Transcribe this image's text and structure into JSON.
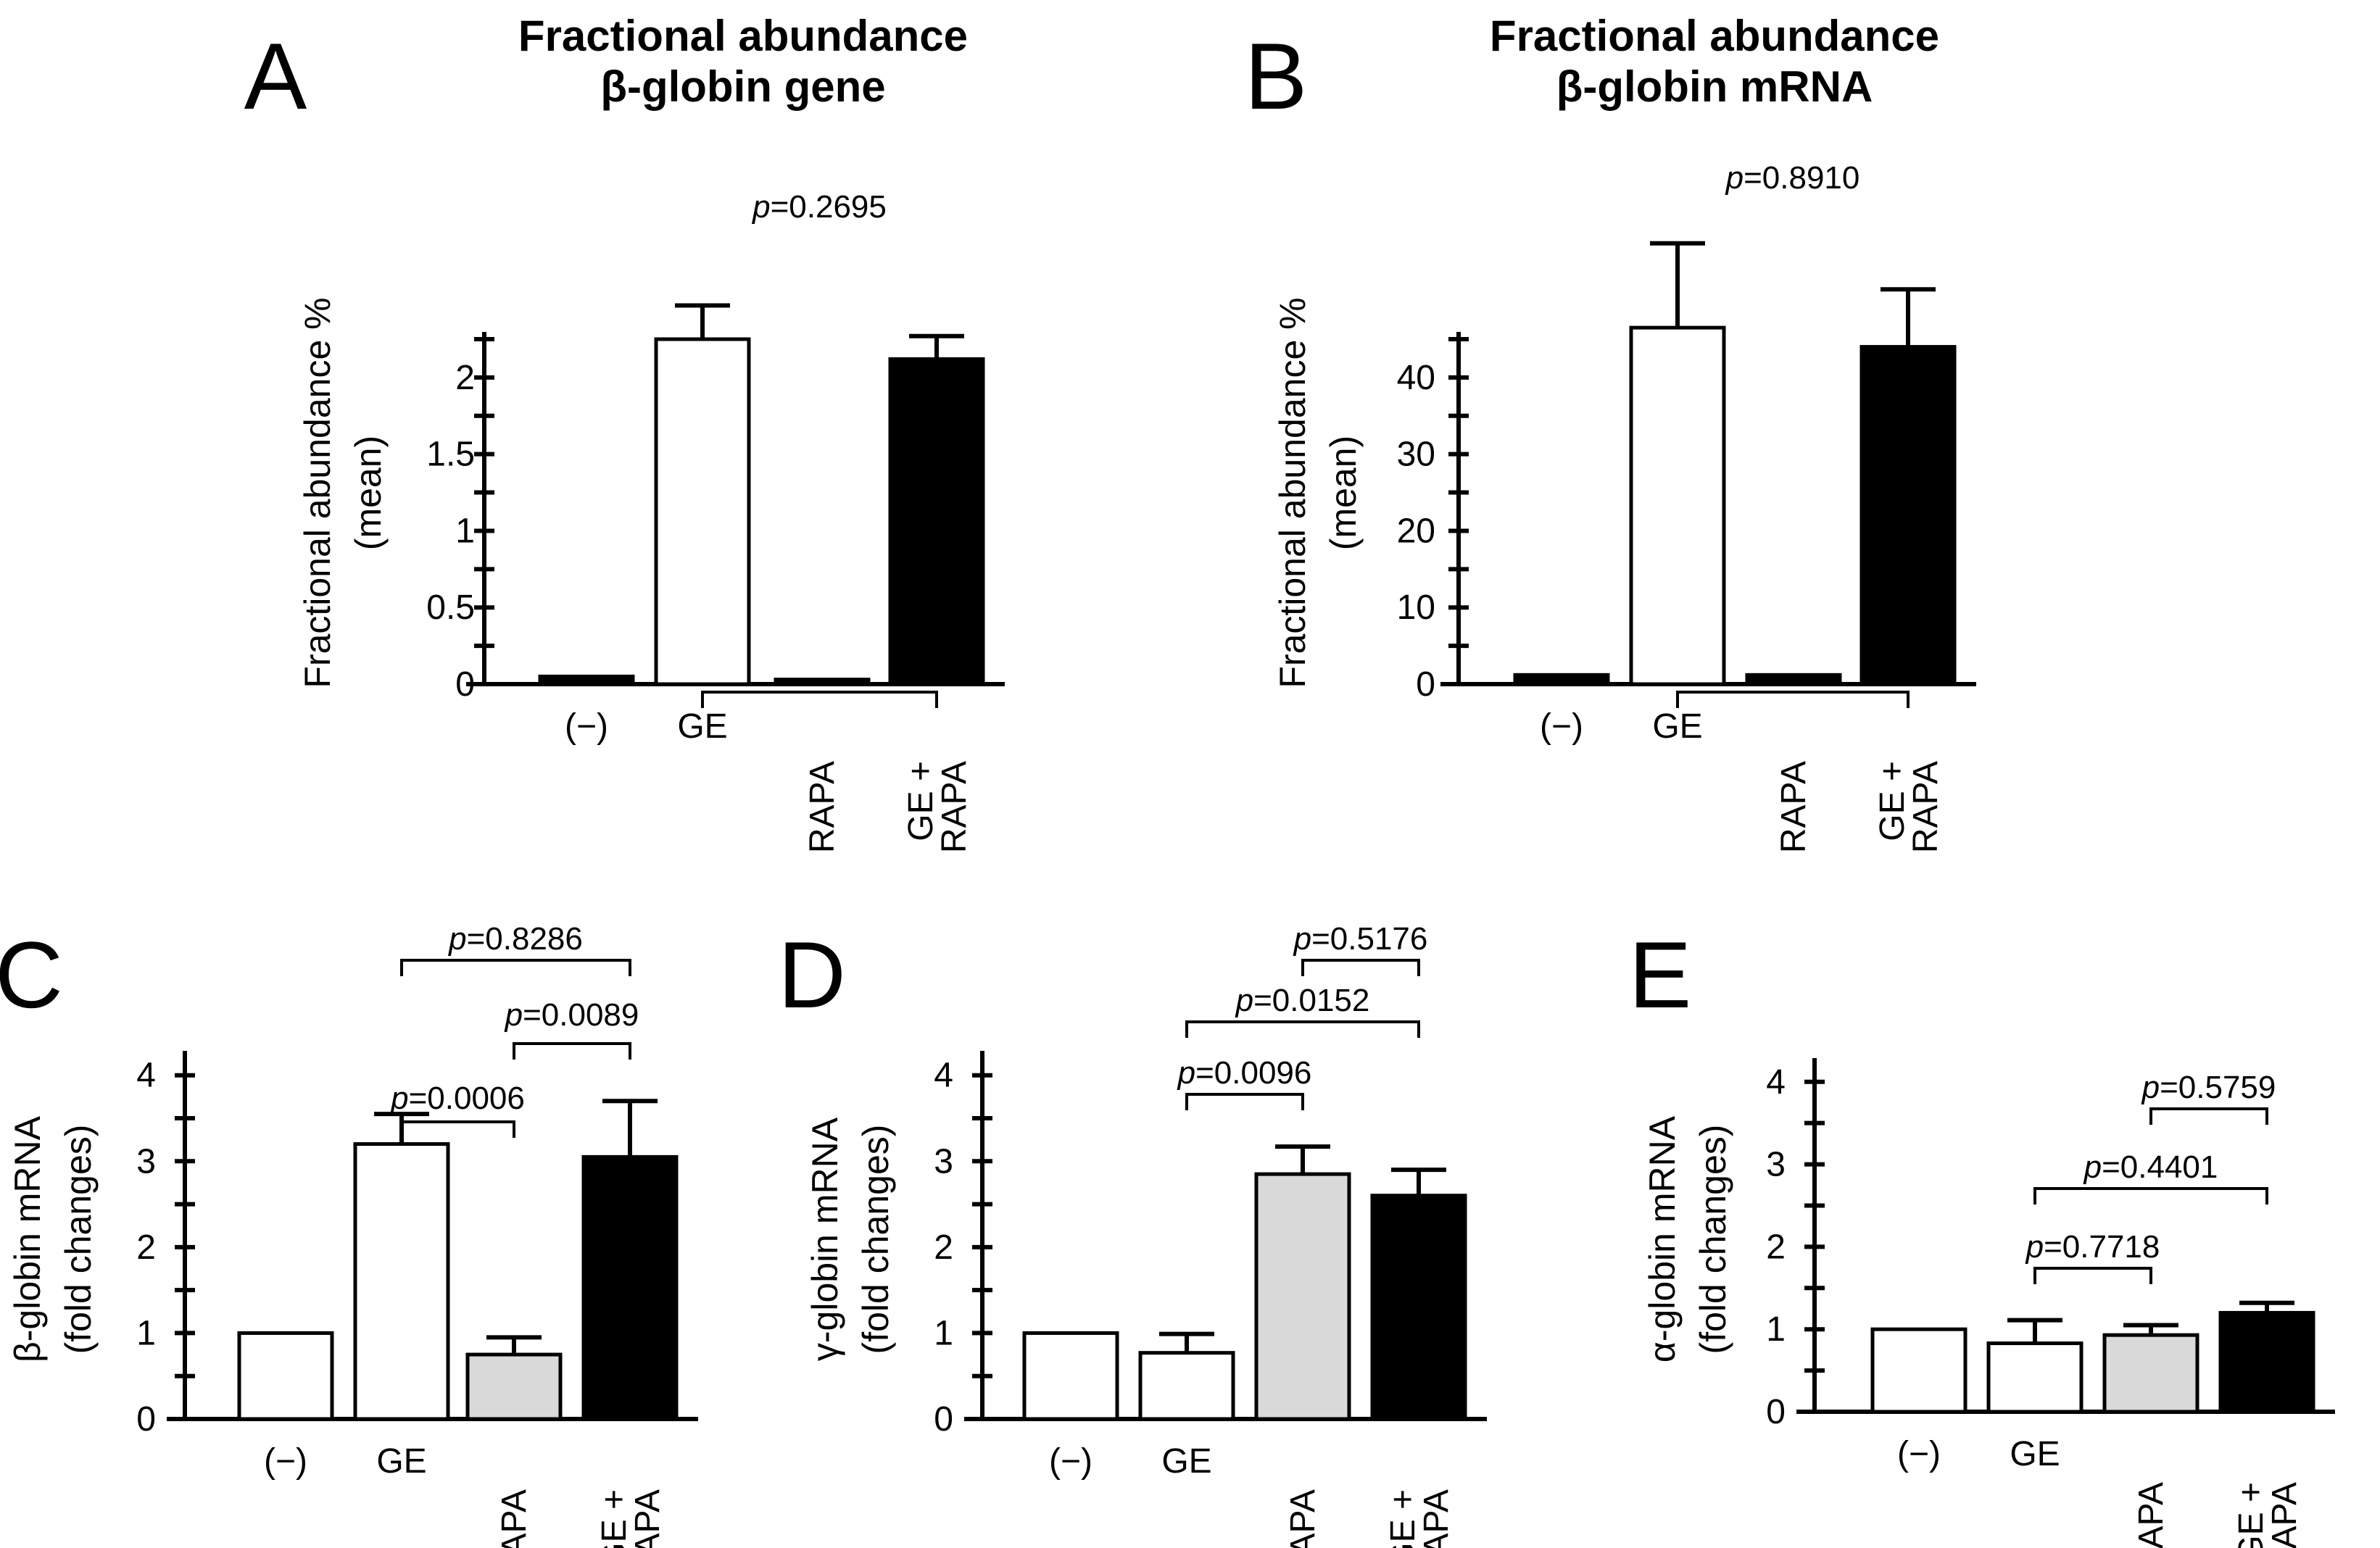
{
  "chart_data": [
    {
      "panel": "A",
      "type": "bar",
      "title": [
        "Fractional abundance",
        "β-globin gene"
      ],
      "ylabel": [
        "Fractional abundance %",
        "(mean)"
      ],
      "categories": [
        "(−)",
        "GE",
        "RAPA",
        "GE + RAPA"
      ],
      "values": [
        0.05,
        2.25,
        0.03,
        2.12
      ],
      "errors": [
        0,
        0.22,
        0,
        0.15
      ],
      "colors": [
        "#000000",
        "#ffffff",
        "#000000",
        "#000000"
      ],
      "ylim": [
        0,
        2.25
      ],
      "yticks": [
        0,
        0.5,
        1,
        1.5,
        2
      ],
      "pvalues": [
        {
          "from": 1,
          "to": 3,
          "text": "p=0.2695"
        }
      ]
    },
    {
      "panel": "B",
      "type": "bar",
      "title": [
        "Fractional abundance",
        "β-globin mRNA"
      ],
      "ylabel": [
        "Fractional abundance %",
        "(mean)"
      ],
      "categories": [
        "(−)",
        "GE",
        "RAPA",
        "GE + RAPA"
      ],
      "values": [
        1.2,
        46.5,
        1.2,
        44
      ],
      "errors": [
        0,
        11,
        0,
        7.5
      ],
      "colors": [
        "#000000",
        "#ffffff",
        "#000000",
        "#000000"
      ],
      "ylim": [
        0,
        45
      ],
      "yticks": [
        0,
        10,
        20,
        30,
        40
      ],
      "pvalues": [
        {
          "from": 1,
          "to": 3,
          "text": "p=0.8910"
        }
      ]
    },
    {
      "panel": "C",
      "type": "bar",
      "title": [],
      "ylabel": [
        "β-globin mRNA",
        "(fold changes)"
      ],
      "categories": [
        "(−)",
        "GE",
        "RAPA",
        "GE + RAPA"
      ],
      "values": [
        1.0,
        3.2,
        0.75,
        3.05
      ],
      "errors": [
        0,
        0.35,
        0.2,
        0.65
      ],
      "colors": [
        "#ffffff",
        "#ffffff",
        "#d9d9d9",
        "#000000"
      ],
      "ylim": [
        0,
        4.2
      ],
      "yticks": [
        0,
        1,
        2,
        3,
        4
      ],
      "pvalues": [
        {
          "from": 1,
          "to": 3,
          "text": "p=0.8286"
        },
        {
          "from": 2,
          "to": 3,
          "text": "p=0.0089"
        },
        {
          "from": 1,
          "to": 2,
          "text": "p=0.0006"
        }
      ]
    },
    {
      "panel": "D",
      "type": "bar",
      "title": [],
      "ylabel": [
        "γ-globin mRNA",
        "(fold changes)"
      ],
      "categories": [
        "(−)",
        "GE",
        "RAPA",
        "GE + RAPA"
      ],
      "values": [
        1.0,
        0.77,
        2.85,
        2.6
      ],
      "errors": [
        0,
        0.22,
        0.32,
        0.3
      ],
      "colors": [
        "#ffffff",
        "#ffffff",
        "#d9d9d9",
        "#000000"
      ],
      "ylim": [
        0,
        4.2
      ],
      "yticks": [
        0,
        1,
        2,
        3,
        4
      ],
      "pvalues": [
        {
          "from": 2,
          "to": 3,
          "text": "p=0.5176"
        },
        {
          "from": 1,
          "to": 3,
          "text": "p=0.0152"
        },
        {
          "from": 1,
          "to": 2,
          "text": "p=0.0096"
        }
      ]
    },
    {
      "panel": "E",
      "type": "bar",
      "title": [],
      "ylabel": [
        "α-globin mRNA",
        "(fold changes)"
      ],
      "categories": [
        "(−)",
        "GE",
        "RAPA",
        "GE + RAPA"
      ],
      "values": [
        1.0,
        0.83,
        0.93,
        1.2
      ],
      "errors": [
        0,
        0.28,
        0.12,
        0.12
      ],
      "colors": [
        "#ffffff",
        "#ffffff",
        "#d9d9d9",
        "#000000"
      ],
      "ylim": [
        0,
        4.2
      ],
      "yticks": [
        0,
        1,
        2,
        3,
        4
      ],
      "pvalues": [
        {
          "from": 2,
          "to": 3,
          "text": "p=0.5759"
        },
        {
          "from": 1,
          "to": 3,
          "text": "p=0.4401"
        },
        {
          "from": 1,
          "to": 2,
          "text": "p=0.7718"
        }
      ]
    }
  ]
}
